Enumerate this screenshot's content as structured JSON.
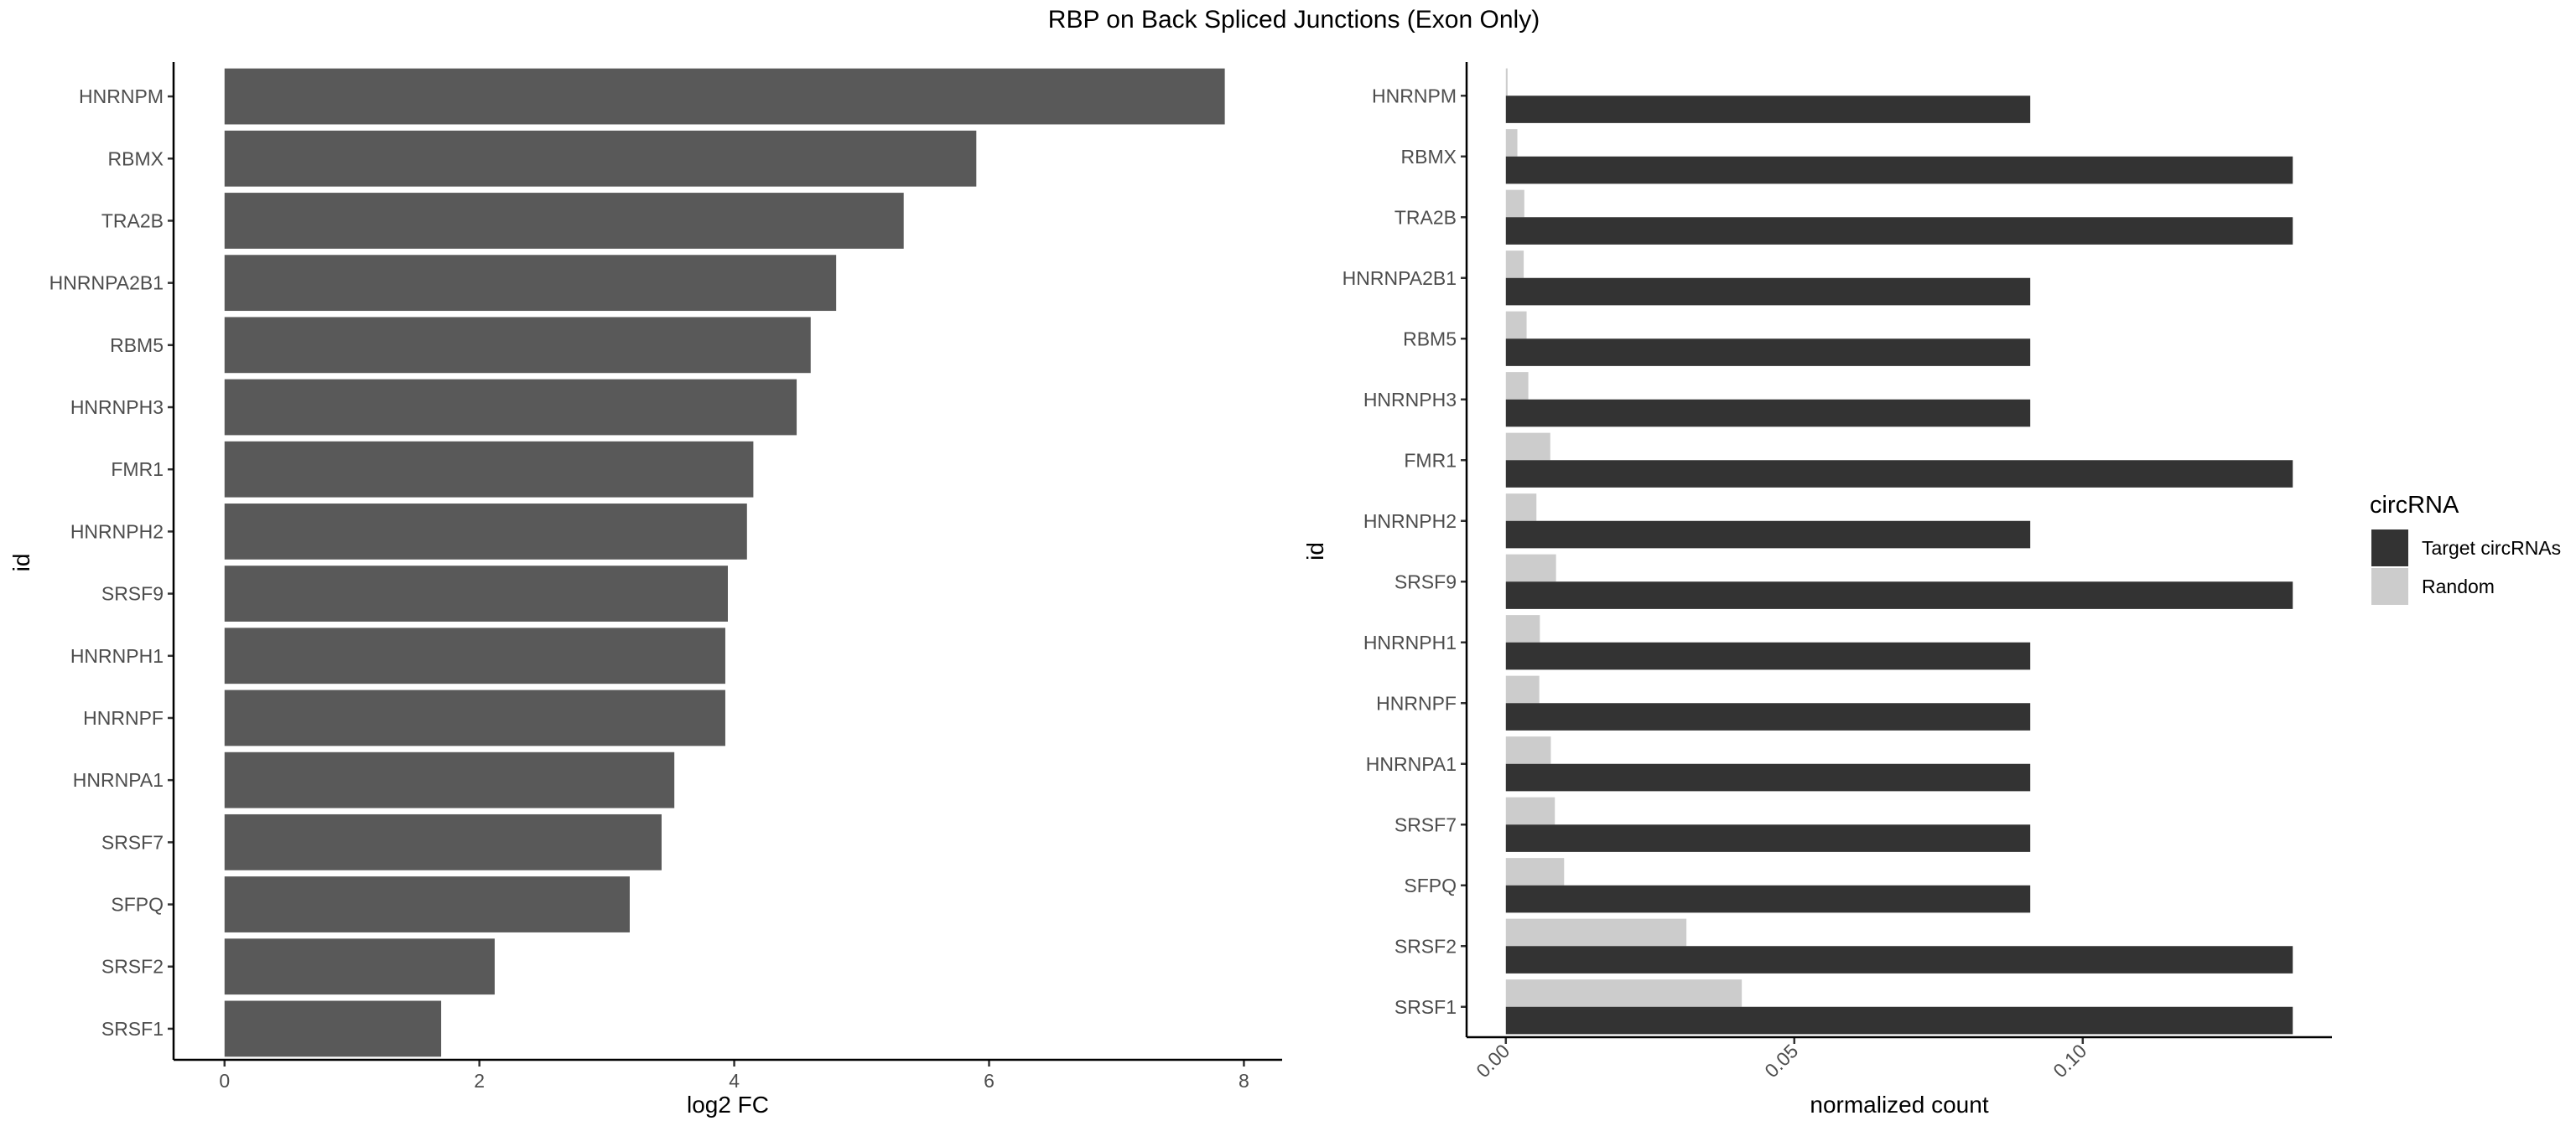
{
  "title": "RBP on Back Spliced Junctions (Exon Only)",
  "colors": {
    "left_bar": "#595959",
    "target": "#333333",
    "random": "#cccccc"
  },
  "chart_data": [
    {
      "type": "bar",
      "orientation": "horizontal",
      "categories": [
        "HNRNPM",
        "RBMX",
        "TRA2B",
        "HNRNPA2B1",
        "RBM5",
        "HNRNPH3",
        "FMR1",
        "HNRNPH2",
        "SRSF9",
        "HNRNPH1",
        "HNRNPF",
        "HNRNPA1",
        "SRSF7",
        "SFPQ",
        "SRSF2",
        "SRSF1"
      ],
      "values": [
        7.85,
        5.9,
        5.33,
        4.8,
        4.6,
        4.49,
        4.15,
        4.1,
        3.95,
        3.93,
        3.93,
        3.53,
        3.43,
        3.18,
        2.12,
        1.7
      ],
      "xlabel": "log2 FC",
      "ylabel": "id",
      "xlim": [
        -0.4,
        8.3
      ],
      "xticks": [
        0,
        2,
        4,
        6,
        8
      ],
      "grid": false,
      "legend": "none"
    },
    {
      "type": "bar",
      "orientation": "horizontal",
      "grouping": "dodge",
      "categories": [
        "HNRNPM",
        "RBMX",
        "TRA2B",
        "HNRNPA2B1",
        "RBM5",
        "HNRNPH3",
        "FMR1",
        "HNRNPH2",
        "SRSF9",
        "HNRNPH1",
        "HNRNPF",
        "HNRNPA1",
        "SRSF7",
        "SFPQ",
        "SRSF2",
        "SRSF1"
      ],
      "series": [
        {
          "name": "Target circRNAs",
          "values": [
            0.0909,
            0.1364,
            0.1364,
            0.0909,
            0.0909,
            0.0909,
            0.1364,
            0.0909,
            0.1364,
            0.0909,
            0.0909,
            0.0909,
            0.0909,
            0.0909,
            0.1364,
            0.1364
          ]
        },
        {
          "name": "Random",
          "values": [
            0.0003,
            0.002,
            0.0032,
            0.0031,
            0.0036,
            0.0039,
            0.0077,
            0.0053,
            0.0087,
            0.0059,
            0.0058,
            0.0078,
            0.0085,
            0.0101,
            0.0313,
            0.0409
          ]
        }
      ],
      "xlabel": "normalized count",
      "ylabel": "id",
      "xlim": [
        -0.0068,
        0.1432
      ],
      "xticks": [
        0.0,
        0.05,
        0.1
      ],
      "xtick_labels": [
        "0.00",
        "0.05",
        "0.10"
      ],
      "grid": false,
      "legend": {
        "title": "circRNA",
        "position": "right",
        "entries": [
          "Target circRNAs",
          "Random"
        ]
      }
    }
  ]
}
